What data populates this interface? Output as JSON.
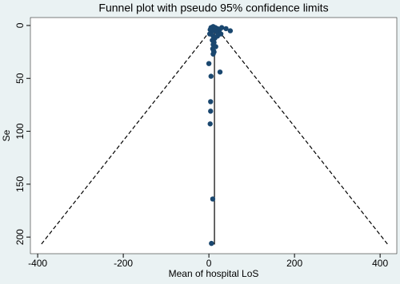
{
  "chart_data": {
    "type": "scatter",
    "title": "Funnel plot with pseudo 95% confidence limits",
    "x_label": "Mean of hospital LoS",
    "y_label": "Se",
    "xlim": [
      -417,
      439
    ],
    "ylim": [
      -7.5,
      215.7
    ],
    "y_reversed": true,
    "xticks": [
      -400,
      -200,
      0,
      200,
      400
    ],
    "yticks": [
      0,
      50,
      100,
      150,
      200
    ],
    "color": "#1a476f",
    "x": [
      5,
      8,
      10,
      15,
      20,
      25,
      30,
      40,
      50,
      12,
      18,
      22,
      10,
      14,
      8,
      12,
      10,
      9,
      12,
      10,
      20,
      28,
      6,
      3,
      2,
      16,
      11,
      0,
      26,
      5,
      4,
      4,
      3,
      9,
      6
    ],
    "values": [
      2,
      3,
      1,
      2,
      3,
      4,
      2,
      3,
      5,
      5,
      6,
      8,
      10,
      12,
      14,
      16,
      18,
      22,
      25,
      27,
      10,
      8,
      6,
      4,
      8,
      20,
      24,
      36,
      44,
      48,
      72,
      81,
      93,
      164,
      206
    ],
    "lines": [
      {
        "style": "solid",
        "x": [
          13,
          13
        ],
        "y": [
          0,
          207
        ]
      },
      {
        "style": "dashed",
        "x": [
          13,
          -392
        ],
        "y": [
          0,
          207
        ]
      },
      {
        "style": "dashed",
        "x": [
          13,
          418
        ],
        "y": [
          0,
          207
        ]
      }
    ]
  }
}
